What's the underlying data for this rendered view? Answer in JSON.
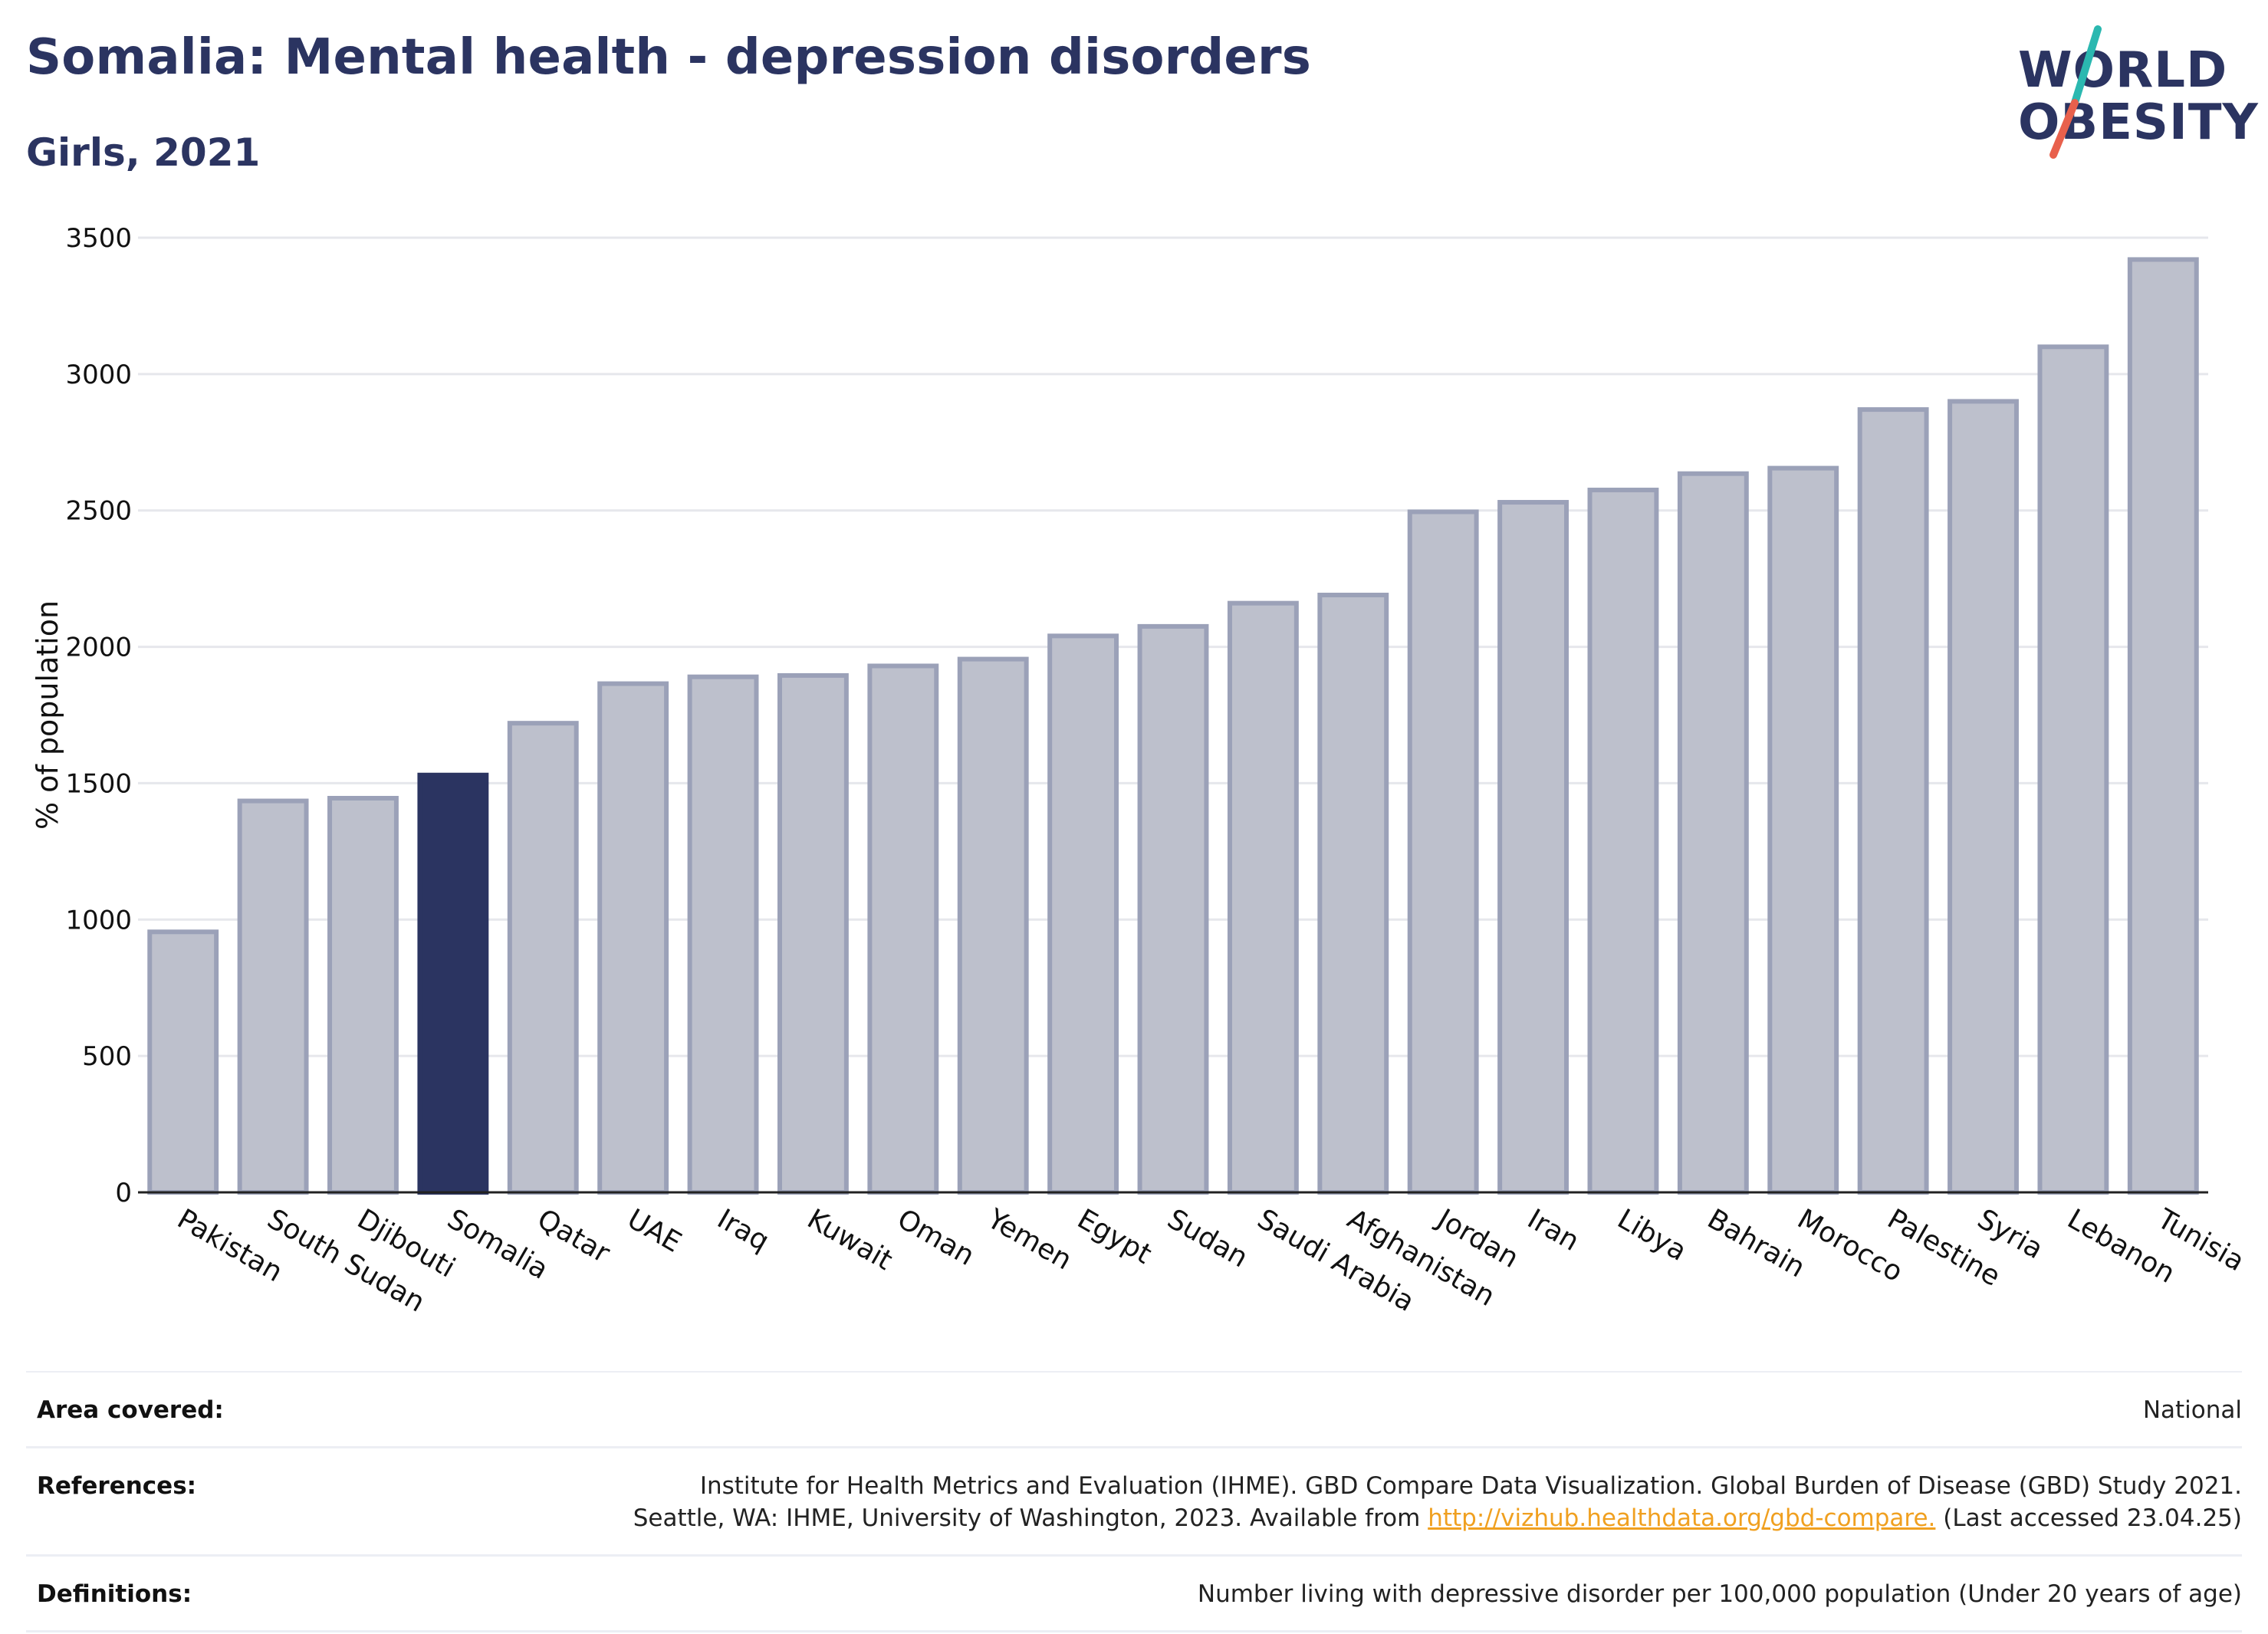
{
  "header": {
    "title": "Somalia: Mental health - depression disorders",
    "subtitle": "Girls, 2021"
  },
  "logo": {
    "line1": "WORLD",
    "line2": "OBESITY",
    "colors": {
      "text": "#2b3461",
      "slash_top": "#2bb8b0",
      "slash_bottom": "#e8604c"
    }
  },
  "chart_data": {
    "type": "bar",
    "ylabel": "% of population",
    "xlabel": "",
    "ylim": [
      0,
      3500
    ],
    "yticks": [
      0,
      500,
      1000,
      1500,
      2000,
      2500,
      3000,
      3500
    ],
    "grid": true,
    "highlight": "Somalia",
    "colors": {
      "highlight": "#2b3461",
      "bar_fill": "#bdc0cc",
      "bar_stroke": "#9ba1b8",
      "grid": "#e6e7ec"
    },
    "categories": [
      "Pakistan",
      "South Sudan",
      "Djibouti",
      "Somalia",
      "Qatar",
      "UAE",
      "Iraq",
      "Kuwait",
      "Oman",
      "Yemen",
      "Egypt",
      "Sudan",
      "Saudi Arabia",
      "Afghanistan",
      "Jordan",
      "Iran",
      "Libya",
      "Bahrain",
      "Morocco",
      "Palestine",
      "Syria",
      "Lebanon",
      "Tunisia"
    ],
    "values": [
      955,
      1435,
      1445,
      1530,
      1720,
      1865,
      1890,
      1895,
      1930,
      1955,
      2040,
      2075,
      2160,
      2190,
      2495,
      2530,
      2575,
      2635,
      2655,
      2870,
      2900,
      3100,
      3420
    ]
  },
  "meta": {
    "area_label": "Area covered:",
    "area_value": "National",
    "references_label": "References:",
    "references_line1": "Institute for Health Metrics and Evaluation (IHME). GBD Compare Data Visualization. Global Burden of Disease (GBD) Study 2021.",
    "references_line2_pre": "Seattle, WA: IHME, University of Washington, 2023. Available from ",
    "references_link": "http://vizhub.healthdata.org/gbd-compare.",
    "references_line2_post": " (Last accessed 23.04.25)",
    "definitions_label": "Definitions:",
    "definitions_value": "Number living with depressive disorder per 100,000 population (Under 20 years of age)"
  }
}
